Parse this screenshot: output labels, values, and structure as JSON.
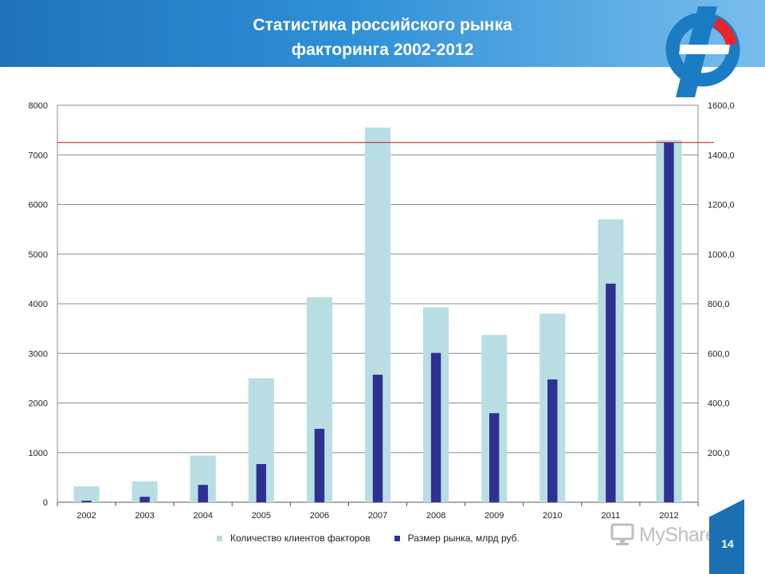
{
  "header": {
    "title_line1": "Статистика российского рынка",
    "title_line2": "факторинга 2002-2012"
  },
  "colors": {
    "header_blue": "#1f73b9",
    "clients_bar": "#b8dee3",
    "market_bar": "#2e3192",
    "reference_line": "#d9262c",
    "logo_blue": "#1b7cc4",
    "logo_red": "#e8262d"
  },
  "watermark": {
    "text": "MyShared",
    "icon": "monitor-icon"
  },
  "page_number": "14",
  "chart_data": {
    "type": "bar",
    "categories": [
      "2002",
      "2003",
      "2004",
      "2005",
      "2006",
      "2007",
      "2008",
      "2009",
      "2010",
      "2011",
      "2012"
    ],
    "series": [
      {
        "name": "Количество клиентов факторов",
        "axis": "left",
        "color": "#b8dee3",
        "values": [
          320,
          420,
          940,
          2500,
          4130,
          7550,
          3930,
          3370,
          3800,
          5700,
          7300
        ]
      },
      {
        "name": "Размер рынка, млрд руб.",
        "axis": "right",
        "color": "#2e3192",
        "values": [
          6,
          22,
          70,
          154,
          296,
          514,
          602,
          359,
          495,
          881,
          1449
        ]
      }
    ],
    "left_axis": {
      "min": 0,
      "max": 8000,
      "ticks": [
        "0",
        "1000",
        "2000",
        "3000",
        "4000",
        "5000",
        "6000",
        "7000",
        "8000"
      ]
    },
    "right_axis": {
      "min": 0,
      "max": 1600,
      "ticks": [
        "200,0",
        "400,0",
        "600,0",
        "800,0",
        "1000,0",
        "1200,0",
        "1400,0",
        "1600,0"
      ]
    },
    "reference_line_value": 1450,
    "grid": true,
    "legend": "bottom"
  }
}
